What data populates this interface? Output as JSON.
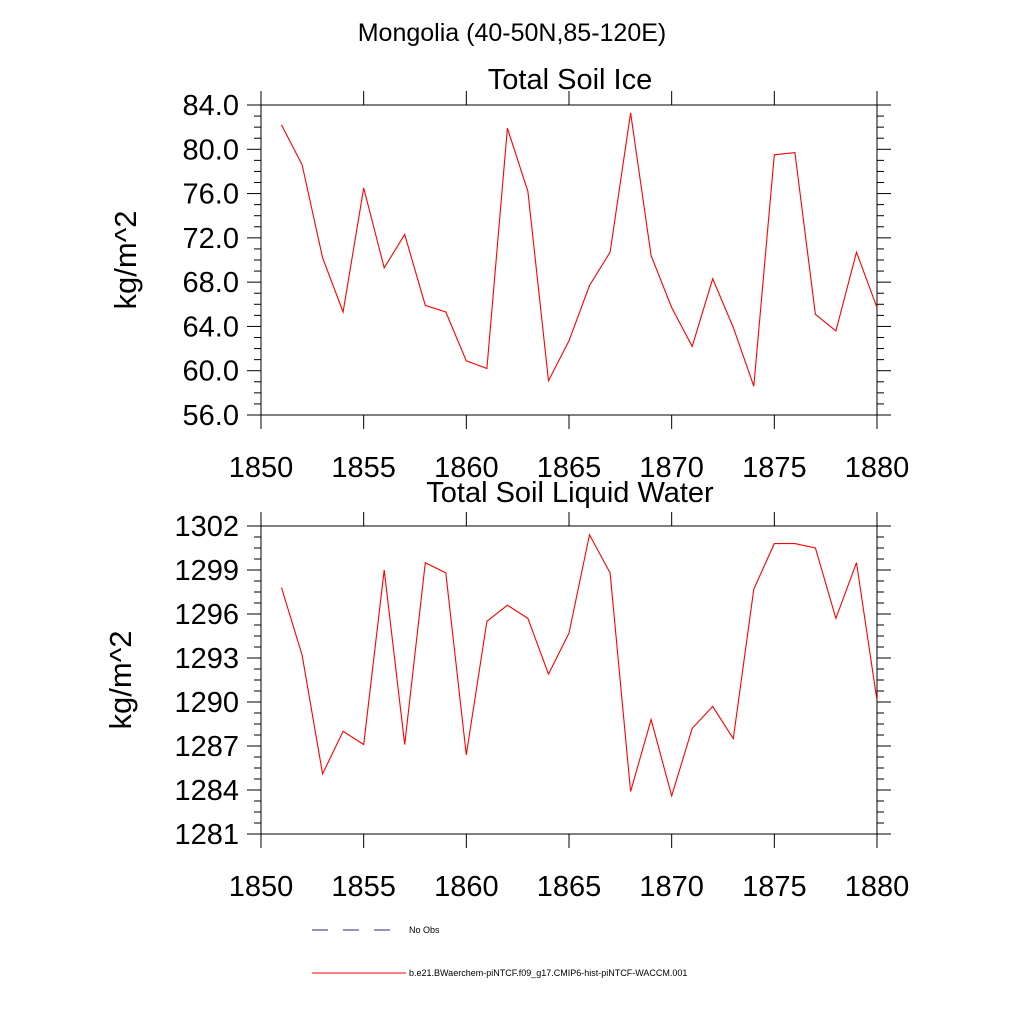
{
  "page_title": "Mongolia (40-50N,85-120E)",
  "chart_data": [
    {
      "type": "line",
      "title": "Total Soil Ice",
      "ylabel": "kg/m^2",
      "xlabel": "",
      "xlim": [
        1850,
        1880
      ],
      "ylim": [
        56,
        84
      ],
      "x_ticks": [
        1850,
        1855,
        1860,
        1865,
        1870,
        1875,
        1880
      ],
      "x_tick_labels": [
        "1850",
        "1855",
        "1860",
        "1865",
        "1870",
        "1875",
        "1880"
      ],
      "y_ticks": [
        56,
        60,
        64,
        68,
        72,
        76,
        80,
        84
      ],
      "y_tick_labels": [
        "56.0",
        "60.0",
        "64.0",
        "68.0",
        "72.0",
        "76.0",
        "80.0",
        "84.0"
      ],
      "grid": false,
      "series": [
        {
          "name": "b.e21.BWaerchem-piNTCF.f09_g17.CMIP6-hist-piNTCF-WACCM.001",
          "color": "#ff0000",
          "x": [
            1851,
            1852,
            1853,
            1854,
            1855,
            1856,
            1857,
            1858,
            1859,
            1860,
            1861,
            1862,
            1863,
            1864,
            1865,
            1866,
            1867,
            1868,
            1869,
            1870,
            1871,
            1872,
            1873,
            1874,
            1875,
            1876,
            1877,
            1878,
            1879,
            1880
          ],
          "values": [
            82.2,
            78.6,
            70.2,
            65.3,
            76.5,
            69.3,
            72.3,
            65.9,
            65.3,
            60.9,
            60.2,
            81.9,
            76.2,
            59.1,
            62.7,
            67.7,
            70.7,
            83.3,
            70.4,
            65.7,
            62.2,
            68.3,
            63.9,
            58.6,
            79.5,
            79.7,
            65.1,
            63.6,
            70.7,
            65.7
          ]
        }
      ]
    },
    {
      "type": "line",
      "title": "Total Soil Liquid Water",
      "ylabel": "kg/m^2",
      "xlabel": "",
      "xlim": [
        1850,
        1880
      ],
      "ylim": [
        1281,
        1302
      ],
      "x_ticks": [
        1850,
        1855,
        1860,
        1865,
        1870,
        1875,
        1880
      ],
      "x_tick_labels": [
        "1850",
        "1855",
        "1860",
        "1865",
        "1870",
        "1875",
        "1880"
      ],
      "y_ticks": [
        1281,
        1284,
        1287,
        1290,
        1293,
        1296,
        1299,
        1302
      ],
      "y_tick_labels": [
        "1281",
        "1284",
        "1287",
        "1290",
        "1293",
        "1296",
        "1299",
        "1302"
      ],
      "grid": false,
      "series": [
        {
          "name": "b.e21.BWaerchem-piNTCF.f09_g17.CMIP6-hist-piNTCF-WACCM.001",
          "color": "#ff0000",
          "x": [
            1851,
            1852,
            1853,
            1854,
            1855,
            1856,
            1857,
            1858,
            1859,
            1860,
            1861,
            1862,
            1863,
            1864,
            1865,
            1866,
            1867,
            1868,
            1869,
            1870,
            1871,
            1872,
            1873,
            1874,
            1875,
            1876,
            1877,
            1878,
            1879,
            1880
          ],
          "values": [
            1297.8,
            1293.2,
            1285.1,
            1288.0,
            1287.1,
            1299.0,
            1287.1,
            1299.5,
            1298.8,
            1286.4,
            1295.5,
            1296.6,
            1295.7,
            1291.9,
            1294.7,
            1301.4,
            1298.8,
            1283.9,
            1288.8,
            1283.6,
            1288.2,
            1289.7,
            1287.5,
            1297.7,
            1300.8,
            1300.8,
            1300.5,
            1295.7,
            1299.5,
            1290.1
          ]
        }
      ]
    }
  ],
  "legend": {
    "placement": "bottom-center",
    "items": [
      {
        "label": "No Obs",
        "color": "#2b2b7a",
        "style": "dashed"
      },
      {
        "label": "b.e21.BWaerchem-piNTCF.f09_g17.CMIP6-hist-piNTCF-WACCM.001",
        "color": "#ff0000",
        "style": "solid"
      }
    ]
  }
}
